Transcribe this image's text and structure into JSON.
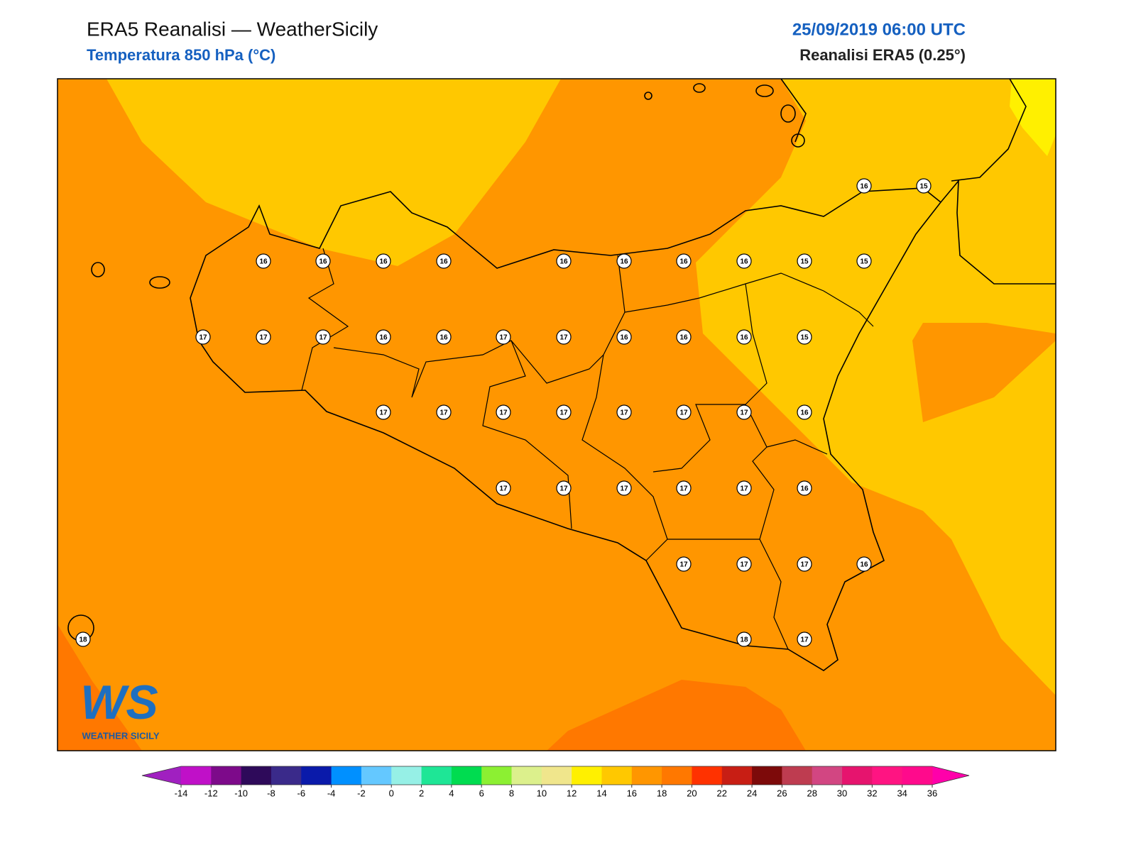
{
  "header": {
    "title": "ERA5 Reanalisi — WeatherSicily",
    "subtitle": "Temperatura 850 hPa (°C)",
    "date": "25/09/2019 06:00 UTC",
    "source": "Reanalisi ERA5 (0.25°)"
  },
  "stations": [
    16,
    15,
    16,
    16,
    16,
    16,
    16,
    16,
    16,
    16,
    15,
    15,
    17,
    17,
    17,
    16,
    16,
    17,
    17,
    16,
    16,
    16,
    15,
    17,
    17,
    17,
    17,
    17,
    17,
    17,
    16,
    17,
    17,
    17,
    17,
    17,
    16,
    17,
    17,
    17,
    16,
    18,
    18,
    17
  ],
  "colorbar": {
    "ticks": [
      -14,
      -12,
      -10,
      -8,
      -6,
      -4,
      -2,
      0,
      2,
      4,
      6,
      8,
      10,
      12,
      14,
      16,
      18,
      20,
      22,
      24,
      26,
      28,
      30,
      32,
      34,
      36
    ],
    "colors": [
      "#a020c0",
      "#c010c8",
      "#7d0a8a",
      "#2e0a5a",
      "#3a2a8a",
      "#0a1aaa",
      "#0090ff",
      "#64c8ff",
      "#96f0e6",
      "#1ee696",
      "#00dc50",
      "#8cf032",
      "#dcf08c",
      "#f0e68c",
      "#fff000",
      "#ffc800",
      "#ff9600",
      "#ff7800",
      "#ff3200",
      "#c81e14",
      "#7d0a0a",
      "#be3c50",
      "#d24682",
      "#e6146e",
      "#ff1482",
      "#ff0a8c",
      "#ff00aa"
    ]
  },
  "logo": {
    "mark": "WS",
    "text": "WEATHER SICILY"
  }
}
